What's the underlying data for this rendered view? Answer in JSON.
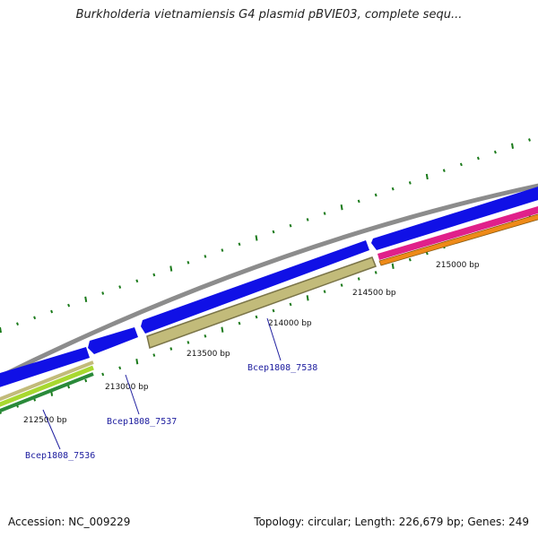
{
  "header": {
    "title": "Burkholderia vietnamiensis G4 plasmid pBVIE03, complete sequ..."
  },
  "footer": {
    "accession": "Accession: NC_009229",
    "summary": "Topology: circular; Length: 226,679 bp; Genes: 249"
  },
  "scale": {
    "ticks": [
      "212500 bp",
      "213000 bp",
      "213500 bp",
      "214000 bp",
      "214500 bp",
      "215000 bp"
    ]
  },
  "genes": [
    {
      "label": "Bcep1808_7536"
    },
    {
      "label": "Bcep1808_7537"
    },
    {
      "label": "Bcep1808_7538"
    }
  ],
  "colors": {
    "backbone": "#8c8c8c",
    "cds_forward": "#1010e6",
    "gene_yellow": "#c2bb7a",
    "gene_lime": "#a8d830",
    "gene_green": "#2a8a3a",
    "gene_pink": "#e0208a",
    "gene_orange": "#ee8a18",
    "tick_green": "#1a7a1a",
    "label_blue": "#2020a0"
  }
}
